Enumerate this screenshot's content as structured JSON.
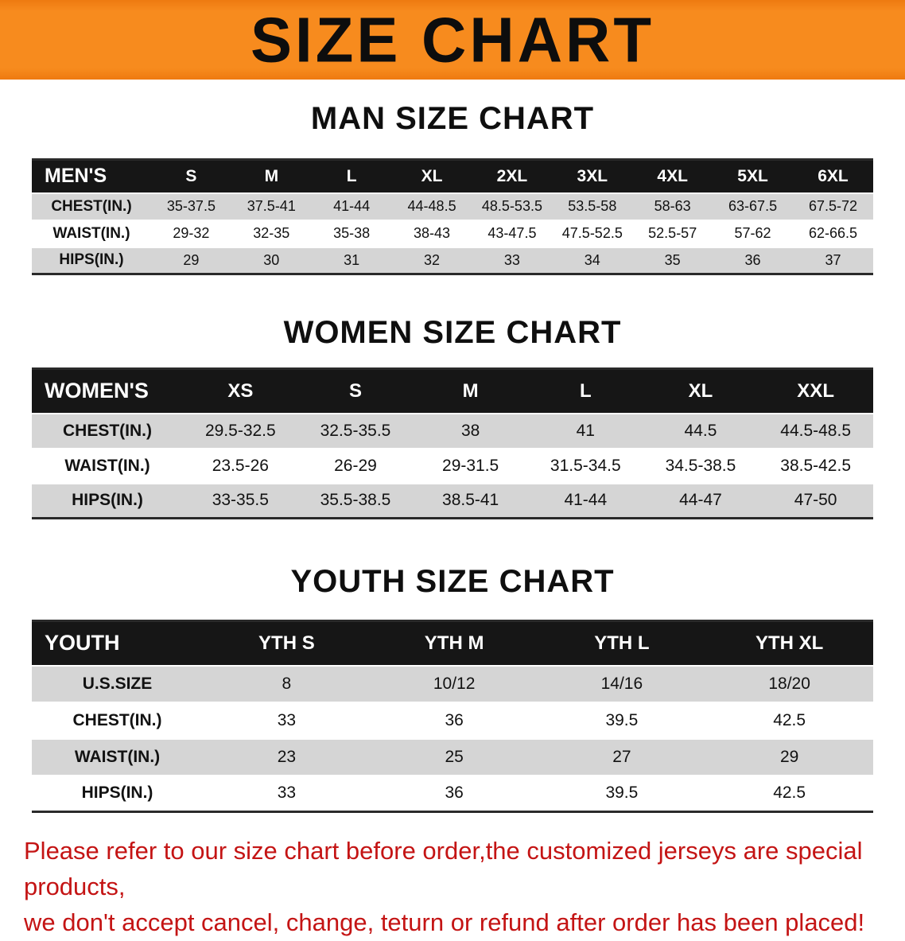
{
  "banner": {
    "title": "SIZE CHART"
  },
  "colors": {
    "banner_bg": "#f78b1e",
    "table_header_bg": "#161616",
    "shaded_row": "#d5d5d5",
    "disclaimer_red": "#c41414"
  },
  "sections": [
    {
      "heading": "MAN SIZE CHART",
      "table": {
        "header": [
          "MEN'S",
          "S",
          "M",
          "L",
          "XL",
          "2XL",
          "3XL",
          "4XL",
          "5XL",
          "6XL"
        ],
        "rows": [
          {
            "label": "CHEST(IN.)",
            "values": [
              "35-37.5",
              "37.5-41",
              "41-44",
              "44-48.5",
              "48.5-53.5",
              "53.5-58",
              "58-63",
              "63-67.5",
              "67.5-72"
            ]
          },
          {
            "label": "WAIST(IN.)",
            "values": [
              "29-32",
              "32-35",
              "35-38",
              "38-43",
              "43-47.5",
              "47.5-52.5",
              "52.5-57",
              "57-62",
              "62-66.5"
            ]
          },
          {
            "label": "HIPS(IN.)",
            "values": [
              "29",
              "30",
              "31",
              "32",
              "33",
              "34",
              "35",
              "36",
              "37"
            ]
          }
        ]
      }
    },
    {
      "heading": "WOMEN SIZE CHART",
      "table": {
        "header": [
          "WOMEN'S",
          "XS",
          "S",
          "M",
          "L",
          "XL",
          "XXL"
        ],
        "rows": [
          {
            "label": "CHEST(IN.)",
            "values": [
              "29.5-32.5",
              "32.5-35.5",
              "38",
              "41",
              "44.5",
              "44.5-48.5"
            ]
          },
          {
            "label": "WAIST(IN.)",
            "values": [
              "23.5-26",
              "26-29",
              "29-31.5",
              "31.5-34.5",
              "34.5-38.5",
              "38.5-42.5"
            ]
          },
          {
            "label": "HIPS(IN.)",
            "values": [
              "33-35.5",
              "35.5-38.5",
              "38.5-41",
              "41-44",
              "44-47",
              "47-50"
            ]
          }
        ]
      }
    },
    {
      "heading": "YOUTH SIZE CHART",
      "table": {
        "header": [
          "YOUTH",
          "YTH S",
          "YTH M",
          "YTH L",
          "YTH XL"
        ],
        "rows": [
          {
            "label": "U.S.SIZE",
            "values": [
              "8",
              "10/12",
              "14/16",
              "18/20"
            ]
          },
          {
            "label": "CHEST(IN.)",
            "values": [
              "33",
              "36",
              "39.5",
              "42.5"
            ]
          },
          {
            "label": "WAIST(IN.)",
            "values": [
              "23",
              "25",
              "27",
              "29"
            ]
          },
          {
            "label": "HIPS(IN.)",
            "values": [
              "33",
              "36",
              "39.5",
              "42.5"
            ]
          }
        ]
      }
    }
  ],
  "disclaimer": {
    "line1": "Please refer to our size chart before order,the customized jerseys are special products,",
    "line2": "we don't accept cancel, change, teturn or refund after order has been placed!"
  }
}
